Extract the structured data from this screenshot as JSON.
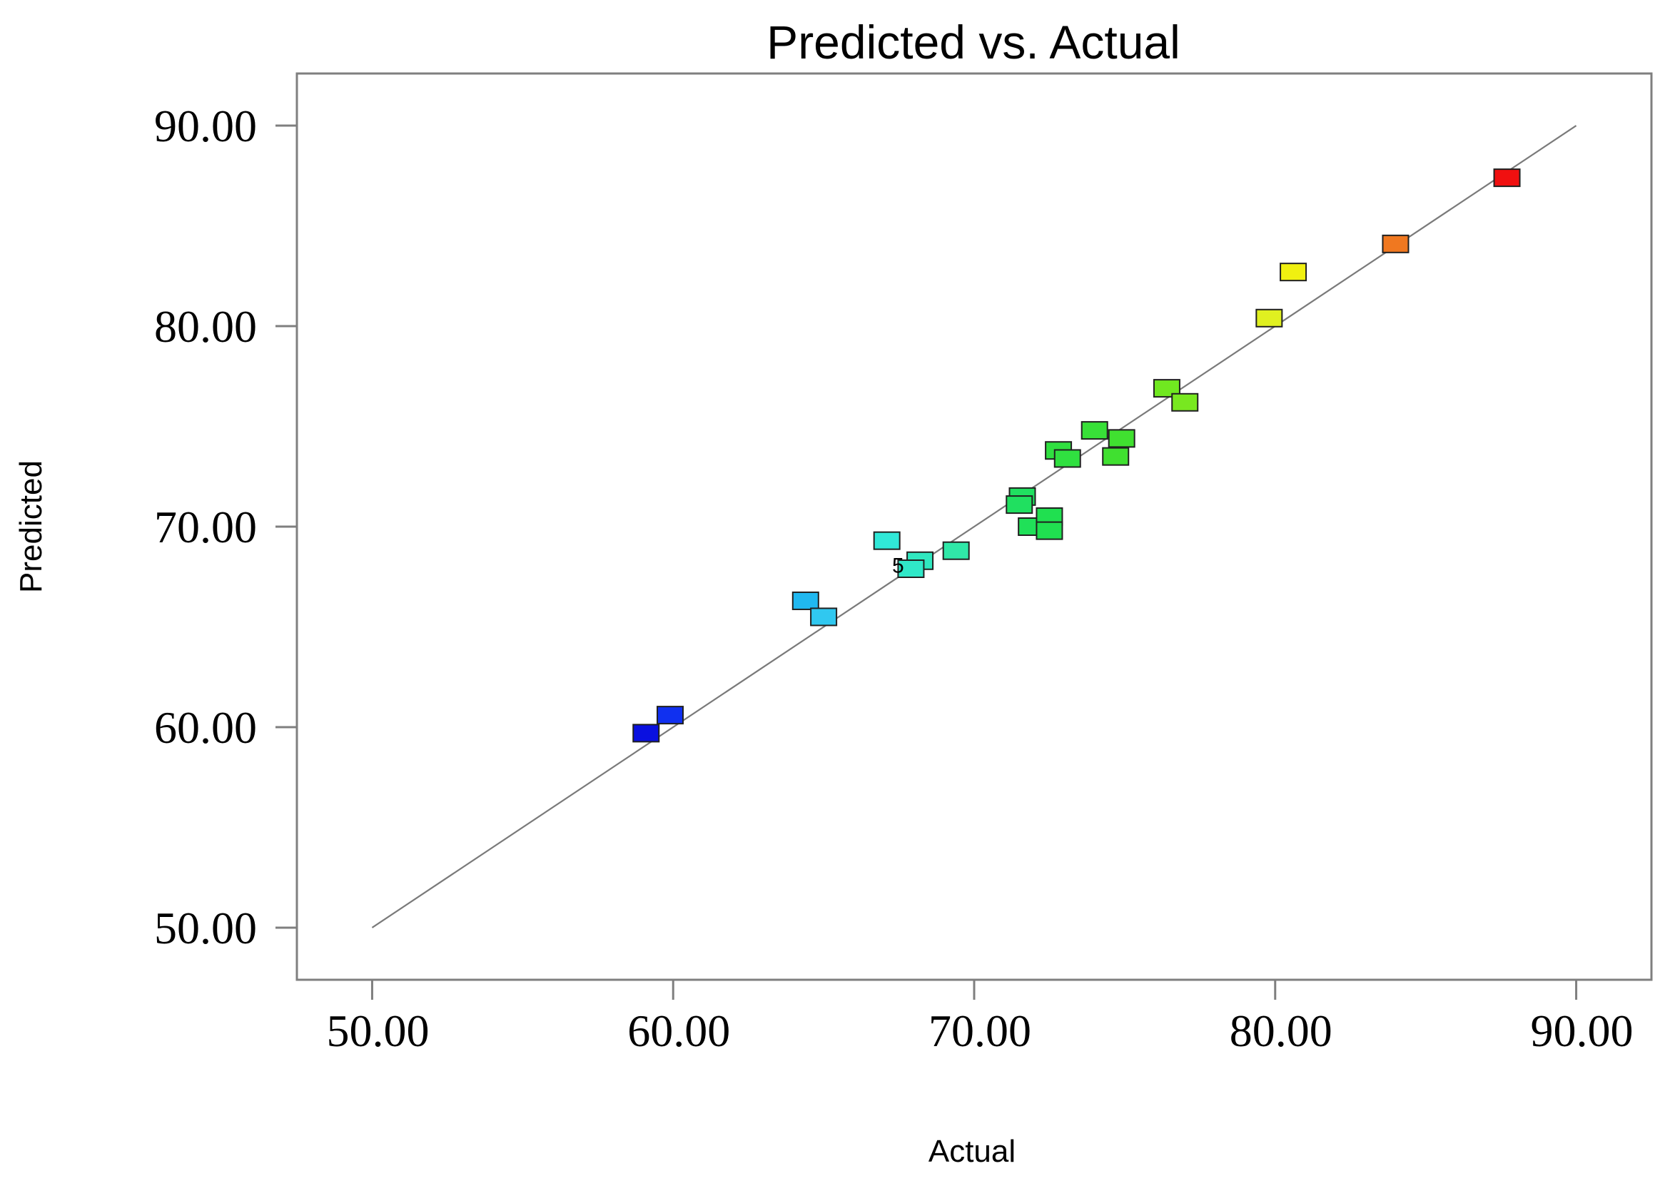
{
  "chart_data": {
    "type": "scatter",
    "title": "Predicted vs. Actual",
    "xlabel": "Actual",
    "ylabel": "Predicted",
    "xlim": [
      47.5,
      92.5
    ],
    "ylim": [
      47.4,
      92.6
    ],
    "xticks": [
      "50.00",
      "60.00",
      "70.00",
      "80.00",
      "90.00"
    ],
    "yticks": [
      "50.00",
      "60.00",
      "70.00",
      "80.00",
      "90.00"
    ],
    "xtick_values": [
      50,
      60,
      70,
      80,
      90
    ],
    "ytick_values": [
      50,
      60,
      70,
      80,
      90
    ],
    "grid": false,
    "reference_line": {
      "x": [
        50,
        90
      ],
      "y": [
        50,
        90
      ],
      "color": "#7a7a7a"
    },
    "points": [
      {
        "x": 59.1,
        "y": 59.7,
        "color": "#0a10e0"
      },
      {
        "x": 59.9,
        "y": 60.6,
        "color": "#1030f0"
      },
      {
        "x": 64.4,
        "y": 66.3,
        "color": "#20b8f0"
      },
      {
        "x": 65.0,
        "y": 65.5,
        "color": "#30c8f0"
      },
      {
        "x": 67.1,
        "y": 69.3,
        "color": "#30e8d8"
      },
      {
        "x": 68.2,
        "y": 68.3,
        "color": "#30e8c0"
      },
      {
        "x": 67.9,
        "y": 67.9,
        "color": "#30e8c8"
      },
      {
        "x": 69.4,
        "y": 68.8,
        "color": "#30e8a8"
      },
      {
        "x": 71.6,
        "y": 71.5,
        "color": "#20e060"
      },
      {
        "x": 71.5,
        "y": 71.1,
        "color": "#20e060"
      },
      {
        "x": 71.9,
        "y": 70.0,
        "color": "#20e058"
      },
      {
        "x": 72.5,
        "y": 70.5,
        "color": "#20e050"
      },
      {
        "x": 72.5,
        "y": 69.8,
        "color": "#20e050"
      },
      {
        "x": 72.8,
        "y": 73.8,
        "color": "#30e040"
      },
      {
        "x": 73.1,
        "y": 73.4,
        "color": "#30e040"
      },
      {
        "x": 74.0,
        "y": 74.8,
        "color": "#38e038"
      },
      {
        "x": 74.9,
        "y": 74.4,
        "color": "#40e030"
      },
      {
        "x": 74.7,
        "y": 73.5,
        "color": "#40e030"
      },
      {
        "x": 76.4,
        "y": 76.9,
        "color": "#70e820"
      },
      {
        "x": 77.0,
        "y": 76.2,
        "color": "#78e820"
      },
      {
        "x": 79.8,
        "y": 80.4,
        "color": "#e0f020"
      },
      {
        "x": 80.6,
        "y": 82.7,
        "color": "#f0f010"
      },
      {
        "x": 84.0,
        "y": 84.1,
        "color": "#f07820"
      },
      {
        "x": 87.7,
        "y": 87.4,
        "color": "#f01010"
      }
    ],
    "annotations": [
      {
        "text": "5",
        "x": 67.7,
        "y": 68.2
      }
    ]
  }
}
